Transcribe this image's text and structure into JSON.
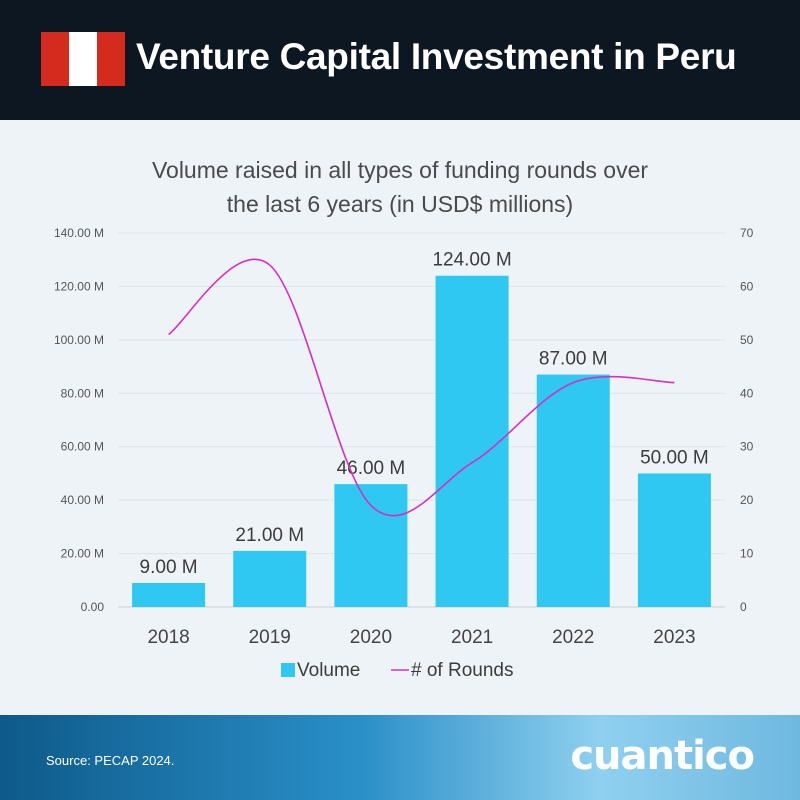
{
  "header": {
    "title": "Venture Capital Investment in Peru",
    "flag_colors": [
      "#d52b1e",
      "#ffffff",
      "#d52b1e"
    ]
  },
  "chart_data": {
    "type": "bar",
    "title_lines": [
      "Volume raised in all types of funding rounds over",
      "the last 6 years (in USD$ millions)"
    ],
    "categories": [
      "2018",
      "2019",
      "2020",
      "2021",
      "2022",
      "2023"
    ],
    "series": [
      {
        "name": "Volume",
        "type": "bar",
        "axis": "left",
        "values": [
          9,
          21,
          46,
          124,
          87,
          50
        ],
        "labels": [
          "9.00 M",
          "21.00 M",
          "46.00 M",
          "124.00 M",
          "87.00 M",
          "50.00 M"
        ],
        "color": "#2ec8f2"
      },
      {
        "name": "# of Rounds",
        "type": "line",
        "axis": "right",
        "values": [
          51,
          64,
          19,
          27,
          42,
          42
        ],
        "color": "#d62fc0"
      }
    ],
    "y_left": {
      "min": 0,
      "max": 140,
      "ticks": [
        "0.00",
        "20.00 M",
        "40.00 M",
        "60.00 M",
        "80.00 M",
        "100.00 M",
        "120.00 M",
        "140.00 M"
      ]
    },
    "y_right": {
      "min": 0,
      "max": 70,
      "ticks": [
        "0",
        "10",
        "20",
        "30",
        "40",
        "50",
        "60",
        "70"
      ]
    },
    "grid": true,
    "legend_position": "bottom"
  },
  "footer": {
    "source": "Source: PECAP 2024.",
    "logo": "cuantico"
  }
}
